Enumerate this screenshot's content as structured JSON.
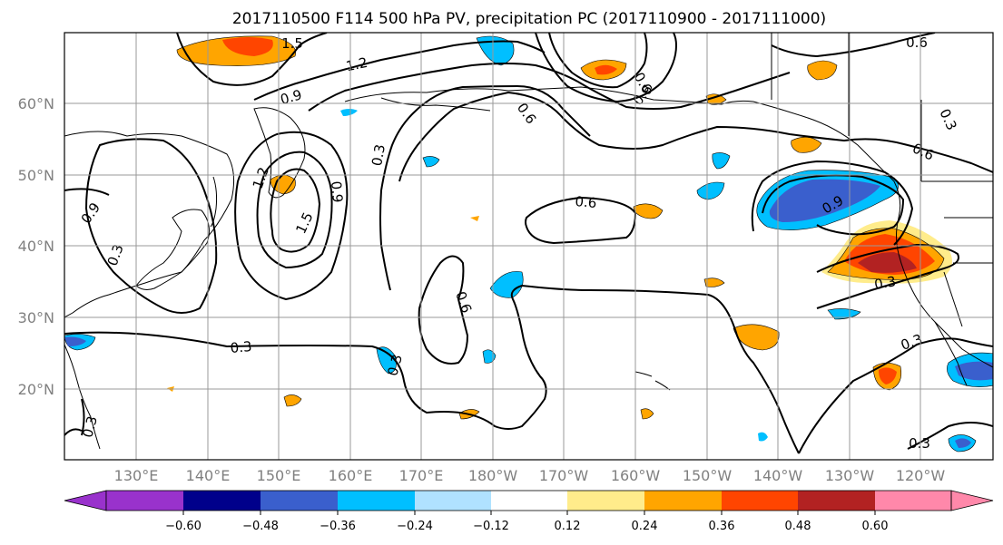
{
  "title": "2017110500 F114 500 hPa PV, precipitation PC (2017110900 - 2017111000)",
  "map": {
    "lat_labels": [
      "60°N",
      "50°N",
      "40°N",
      "30°N",
      "20°N"
    ],
    "lon_labels": [
      "130°E",
      "140°E",
      "150°E",
      "160°E",
      "170°E",
      "180°W",
      "170°W",
      "160°W",
      "150°W",
      "140°W",
      "130°W",
      "120°W"
    ],
    "gridlines": true,
    "frame_color": "#000000",
    "grid_color": "#999999"
  },
  "contour_labels": [
    "1.5",
    "1.2",
    "0.9",
    "0.6",
    "0.3",
    "0.6",
    "0.3",
    "0.9",
    "0.3",
    "0.6",
    "1.5",
    "0.6",
    "1.2",
    "0.9",
    "0.6",
    "0.9",
    "0.3",
    "0.6",
    "0.6",
    "0.3",
    "0.3",
    "0.3",
    "0.3",
    "0.3"
  ],
  "colorbar": {
    "tick_labels": [
      "−0.60",
      "−0.48",
      "−0.36",
      "−0.24",
      "−0.12",
      "0.12",
      "0.24",
      "0.36",
      "0.48",
      "0.60"
    ],
    "colors": [
      "#9932CC",
      "#00008B",
      "#3A5FCD",
      "#00BFFF",
      "#B0E2FF",
      "#FFFFFF",
      "#FFEC8B",
      "#FFA500",
      "#FF4500",
      "#B22222",
      "#FF88AA"
    ],
    "extend": "both"
  },
  "precip_colors": {
    "pos1": "#FFEC8B",
    "pos2": "#FFA500",
    "pos3": "#FF4500",
    "pos4": "#B22222",
    "neg1": "#B0E2FF",
    "neg2": "#00BFFF",
    "neg3": "#3A5FCD"
  }
}
